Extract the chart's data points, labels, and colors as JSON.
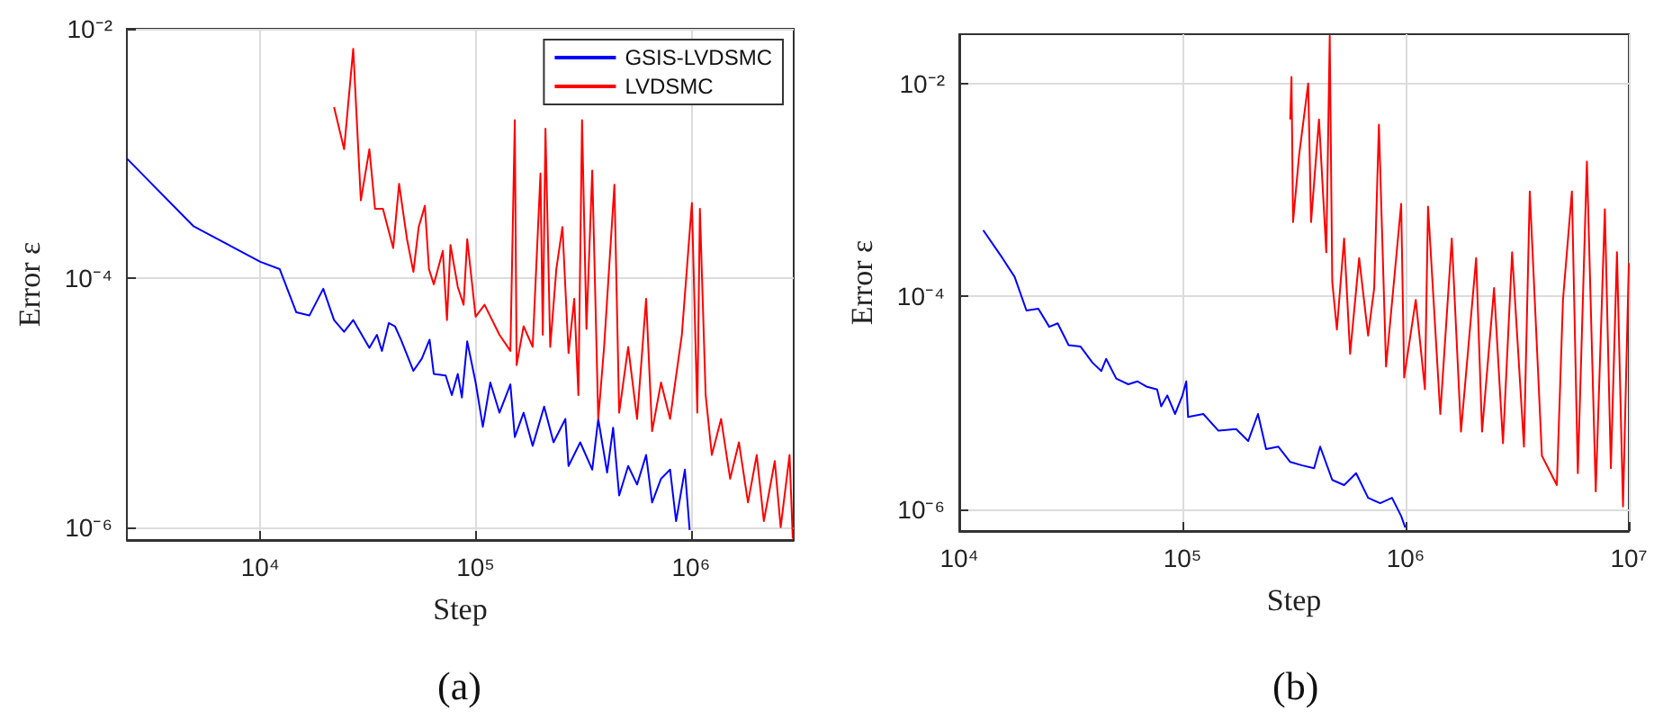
{
  "chart_data": [
    {
      "type": "line",
      "xlabel": "Step",
      "ylabel": "Error ε",
      "log": "xy",
      "grid": true,
      "legend": "top right",
      "annotations": [
        "(a)"
      ],
      "xlim": [
        2400,
        3000000
      ],
      "ylim": [
        7.9e-07,
        0.01
      ],
      "xticks": [
        {
          "value": 10000,
          "label": "10⁴"
        },
        {
          "value": 100000,
          "label": "10⁵"
        },
        {
          "value": 1000000,
          "label": "10⁶"
        }
      ],
      "yticks": [
        {
          "value": 1e-06,
          "label": "10⁻⁶"
        },
        {
          "value": 0.0001,
          "label": "10⁻⁴"
        },
        {
          "value": 0.01,
          "label": "10⁻²"
        }
      ],
      "series": [
        {
          "name": "GSIS-LVDSMC",
          "color": "#0000ff",
          "x": [
            2400,
            4900,
            10000,
            12300,
            14700,
            16900,
            19600,
            22000,
            24500,
            27000,
            32100,
            34800,
            36700,
            39500,
            42200,
            45000,
            51400,
            56200,
            61100,
            63900,
            72600,
            77500,
            82600,
            86300,
            91400,
            100000,
            108000,
            117000,
            129000,
            145000,
            152000,
            167000,
            184000,
            208000,
            230000,
            261000,
            270000,
            306000,
            348000,
            371000,
            408000,
            435000,
            464000,
            511000,
            562000,
            619000,
            660000,
            726000,
            800000,
            853000,
            937000,
            986000
          ],
          "values": [
            0.00091,
            0.00026,
            0.000135,
            0.000118,
            5.3e-05,
            5e-05,
            8.2e-05,
            4.6e-05,
            3.7e-05,
            4.6e-05,
            2.75e-05,
            3.5e-05,
            2.6e-05,
            4.35e-05,
            4.1e-05,
            3.2e-05,
            1.8e-05,
            2.25e-05,
            3.2e-05,
            1.7e-05,
            1.65e-05,
            1.15e-05,
            1.7e-05,
            1.1e-05,
            3.1e-05,
            1.45e-05,
            6.4e-06,
            1.45e-05,
            8.3e-06,
            1.4e-05,
            5.3e-06,
            8.3e-06,
            4.5e-06,
            9.3e-06,
            4.8e-06,
            7.4e-06,
            3.1e-06,
            4.8e-06,
            2.9e-06,
            7.4e-06,
            2.75e-06,
            6.3e-06,
            1.8e-06,
            3.1e-06,
            2.2e-06,
            3.8e-06,
            1.58e-06,
            2.45e-06,
            2.9e-06,
            1.12e-06,
            2.9e-06,
            9.5e-07
          ]
        },
        {
          "name": "LVDSMC",
          "color": "#ff0000",
          "x": [
            22000,
            24500,
            27000,
            29300,
            32100,
            34100,
            37100,
            41400,
            44100,
            48000,
            51400,
            54400,
            58100,
            60700,
            63900,
            70400,
            73600,
            76400,
            82600,
            87900,
            91400,
            100000,
            110000,
            129000,
            145000,
            152000,
            155000,
            167000,
            184000,
            200000,
            205000,
            211000,
            222000,
            237000,
            253000,
            270000,
            287000,
            300000,
            312000,
            327000,
            348000,
            371000,
            395000,
            441000,
            464000,
            511000,
            562000,
            619000,
            660000,
            726000,
            800000,
            907000,
            1010000,
            1070000,
            1100000,
            1170000,
            1250000,
            1380000,
            1520000,
            1670000,
            1840000,
            2020000,
            2180000,
            2450000,
            2610000,
            2870000,
            2970000
          ],
          "values": [
            0.00235,
            0.00108,
            0.0069,
            0.00042,
            0.00108,
            0.00036,
            0.00036,
            0.000174,
            0.00057,
            0.000205,
            0.000112,
            0.000257,
            0.00038,
            0.000118,
            8.9e-05,
            0.000165,
            4.6e-05,
            0.000184,
            8.5e-05,
            6.1e-05,
            0.000205,
            4.9e-05,
            6.1e-05,
            3.5e-05,
            2.6e-05,
            0.00185,
            2e-05,
            4.1e-05,
            2.8e-05,
            0.00069,
            3.5e-05,
            0.00158,
            2.8e-05,
            0.000118,
            0.000257,
            2.5e-05,
            6.8e-05,
            1.15e-05,
            0.00185,
            3.9e-05,
            0.00073,
            7.4e-06,
            2.8e-05,
            0.00056,
            8.3e-06,
            2.8e-05,
            7.4e-06,
            6.8e-05,
            5.9e-06,
            1.45e-05,
            7.4e-06,
            3.5e-05,
            0.0004,
            8.3e-06,
            0.00036,
            1.15e-05,
            3.8e-06,
            7.4e-06,
            2.45e-06,
            4.8e-06,
            1.58e-06,
            3.8e-06,
            1.12e-06,
            3.4e-06,
            1e-06,
            3.8e-06,
            8.1e-07
          ]
        }
      ]
    },
    {
      "type": "line",
      "xlabel": "Step",
      "ylabel": "Error ε",
      "log": "xy",
      "grid": true,
      "annotations": [
        "(b)"
      ],
      "xlim": [
        10000,
        10000000
      ],
      "ylim": [
        6.3e-07,
        0.029
      ],
      "xticks": [
        {
          "value": 10000,
          "label": "10⁴"
        },
        {
          "value": 100000,
          "label": "10⁵"
        },
        {
          "value": 1000000,
          "label": "10⁶"
        },
        {
          "value": 10000000,
          "label": "10⁷"
        }
      ],
      "yticks": [
        {
          "value": 1e-06,
          "label": "10⁻⁶"
        },
        {
          "value": 0.0001,
          "label": "10⁻⁴"
        },
        {
          "value": 0.01,
          "label": "10⁻²"
        }
      ],
      "series": [
        {
          "color": "#0000ff",
          "x": [
            12800,
            15600,
            17700,
            20000,
            22600,
            25300,
            27600,
            30900,
            34900,
            39500,
            43300,
            45500,
            50500,
            57200,
            62800,
            68900,
            77000,
            80300,
            85500,
            92700,
            100000,
            104000,
            106000,
            124000,
            145000,
            174000,
            197000,
            218000,
            237000,
            269000,
            304000,
            344000,
            389000,
            414000,
            469000,
            530000,
            600000,
            679000,
            769000,
            869000,
            955000,
            996000
          ],
          "values": [
            0.00042,
            0.00023,
            0.000153,
            7.4e-05,
            7.7e-05,
            5.2e-05,
            5.6e-05,
            3.5e-05,
            3.4e-05,
            2.4e-05,
            2e-05,
            2.6e-05,
            1.7e-05,
            1.5e-05,
            1.6e-05,
            1.43e-05,
            1.34e-05,
            9.3e-06,
            1.18e-05,
            7.9e-06,
            1.18e-05,
            1.6e-05,
            7.4e-06,
            7.9e-06,
            5.5e-06,
            5.7e-06,
            4.4e-06,
            7.9e-06,
            3.7e-06,
            3.9e-06,
            2.8e-06,
            2.6e-06,
            2.45e-06,
            3.9e-06,
            1.9e-06,
            1.7e-06,
            2.2e-06,
            1.29e-06,
            1.15e-06,
            1.29e-06,
            8.7e-07,
            6.8e-07
          ]
        },
        {
          "color": "#ff0000",
          "x": [
            304000,
            308000,
            313000,
            333000,
            366000,
            377000,
            409000,
            441000,
            457000,
            469000,
            492000,
            530000,
            564000,
            619000,
            679000,
            723000,
            759000,
            817000,
            955000,
            985000,
            1110000,
            1220000,
            1260000,
            1430000,
            1610000,
            1770000,
            2070000,
            2200000,
            2490000,
            2730000,
            3000000,
            3390000,
            3600000,
            4080000,
            4760000,
            5070000,
            5560000,
            5910000,
            6490000,
            7110000,
            7810000,
            8310000,
            8850000,
            9420000,
            10000000
          ],
          "values": [
            0.0046,
            0.0115,
            0.0005,
            0.0021,
            0.01,
            0.0005,
            0.0046,
            0.00026,
            0.028,
            0.000138,
            4.9e-05,
            0.00035,
            2.9e-05,
            0.00023,
            4.3e-05,
            0.00012,
            0.0041,
            2.2e-05,
            0.00074,
            1.74e-05,
            9.3e-05,
            1.35e-05,
            0.0007,
            7.9e-06,
            0.00035,
            5.4e-06,
            0.00023,
            5.4e-06,
            0.00012,
            4.2e-06,
            0.00026,
            3.9e-06,
            0.00097,
            3.2e-06,
            1.7e-06,
            9.3e-05,
            0.00097,
            2.2e-06,
            0.00185,
            1.48e-06,
            0.00066,
            2.45e-06,
            0.00026,
            1.07e-06,
            0.000205
          ]
        }
      ]
    }
  ]
}
